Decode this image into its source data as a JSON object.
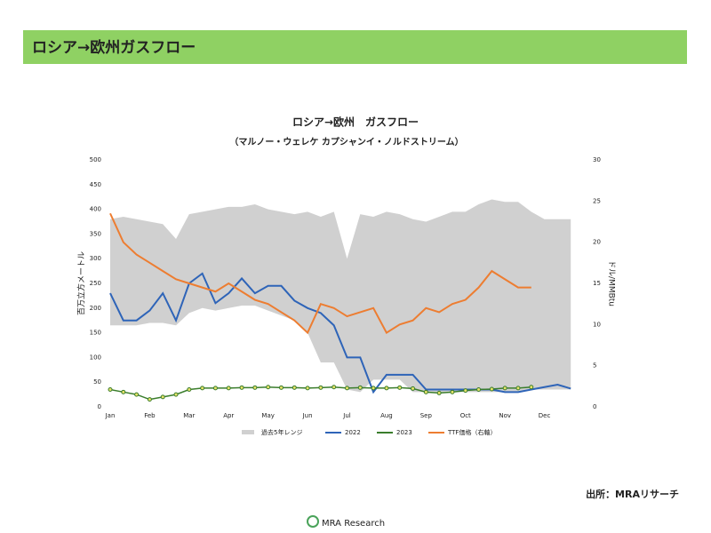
{
  "header": {
    "title": "ロシア→欧州ガスフロー"
  },
  "source": "出所：MRAリサーチ",
  "logo": "MRA Research",
  "chart_data": {
    "type": "line",
    "title": "ロシア→欧州　ガスフロー",
    "subtitle": "（マルノー・ウェレケ カプシャンイ・ノルドストリーム）",
    "ylabel": "百万立方メートル",
    "y2label": "ドル/MMBtu",
    "categories": [
      "Jan",
      null,
      null,
      "Feb",
      null,
      null,
      "Mar",
      null,
      null,
      "Apr",
      null,
      null,
      "May",
      null,
      null,
      "Jun",
      null,
      null,
      "Jul",
      null,
      null,
      "Aug",
      null,
      null,
      "Sep",
      null,
      null,
      "Oct",
      null,
      null,
      "Nov",
      null,
      null,
      "Dec",
      null,
      null
    ],
    "ylim": [
      0,
      500
    ],
    "yticks": [
      0,
      50,
      100,
      150,
      200,
      250,
      300,
      350,
      400,
      450,
      500
    ],
    "y2lim": [
      0,
      30
    ],
    "y2ticks": [
      0,
      5,
      10,
      15,
      20,
      25,
      30
    ],
    "series": [
      {
        "name": "過去5年レンジ",
        "color": "#d0d0d0",
        "type": "range",
        "high": [
          380,
          385,
          380,
          375,
          370,
          340,
          390,
          395,
          400,
          405,
          405,
          410,
          400,
          395,
          390,
          395,
          385,
          395,
          300,
          390,
          385,
          395,
          390,
          380,
          375,
          385,
          395,
          395,
          410,
          420,
          415,
          415,
          395,
          380,
          380,
          380
        ],
        "low": [
          165,
          165,
          165,
          170,
          170,
          165,
          190,
          200,
          195,
          200,
          205,
          205,
          195,
          185,
          175,
          150,
          90,
          90,
          35,
          30,
          55,
          55,
          55,
          30,
          30,
          30,
          30,
          30,
          30,
          30,
          30,
          30,
          35,
          35,
          35,
          35
        ]
      },
      {
        "name": "2022",
        "color": "#2e64b8",
        "type": "line",
        "values": [
          230,
          175,
          175,
          195,
          230,
          175,
          250,
          270,
          210,
          230,
          260,
          230,
          245,
          245,
          215,
          200,
          190,
          165,
          100,
          100,
          30,
          65,
          65,
          65,
          35,
          35,
          35,
          35,
          35,
          35,
          30,
          30,
          35,
          40,
          45,
          37
        ]
      },
      {
        "name": "2023",
        "color": "#3a7d2c",
        "type": "line",
        "marker": true,
        "values": [
          35,
          30,
          25,
          15,
          20,
          25,
          35,
          38,
          38,
          38,
          39,
          39,
          40,
          39,
          39,
          38,
          39,
          40,
          38,
          39,
          38,
          38,
          39,
          37,
          30,
          28,
          30,
          33,
          35,
          36,
          38,
          38,
          40,
          null,
          null,
          null
        ]
      },
      {
        "name": "TTF価格（右軸）",
        "color": "#ed7d31",
        "type": "line",
        "axis": "y2",
        "values": [
          23.5,
          20,
          18.5,
          17.5,
          16.5,
          15.5,
          15,
          14.5,
          14,
          15,
          14,
          13,
          12.5,
          11.5,
          10.5,
          9,
          12.5,
          12,
          11,
          11.5,
          12,
          9,
          10,
          10.5,
          12,
          11.5,
          12.5,
          13,
          14.5,
          16.5,
          15.5,
          14.5,
          14.5,
          null,
          null,
          null
        ]
      }
    ]
  }
}
